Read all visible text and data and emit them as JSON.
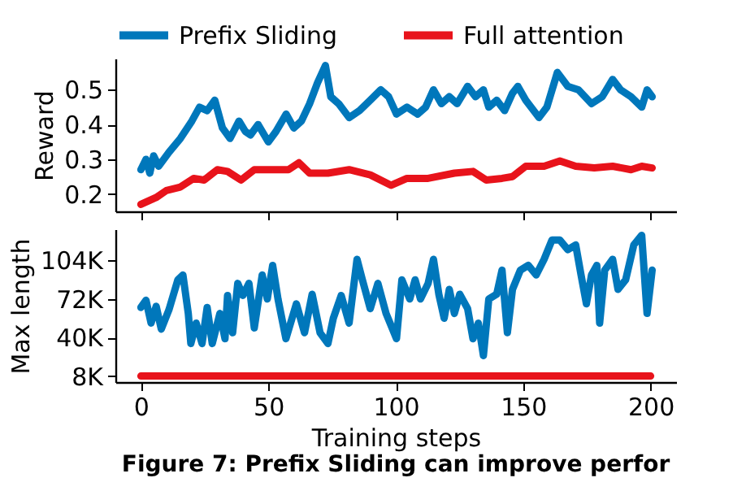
{
  "chart_data": [
    {
      "type": "line",
      "ylabel": "Reward",
      "xlim": [
        -10,
        210
      ],
      "ylim": [
        0.15,
        0.59
      ],
      "xticks": [
        0,
        50,
        100,
        150,
        200
      ],
      "yticks": [
        0.2,
        0.3,
        0.4,
        0.5
      ],
      "tick_labels": "y",
      "grid": false,
      "legend": "top",
      "line_style": "solid",
      "marker": "none",
      "series": [
        {
          "name": "Prefix Sliding",
          "color": "#0077bb",
          "x": [
            0,
            2,
            3.5,
            5,
            7,
            11,
            15.5,
            20,
            23,
            26,
            29,
            32,
            35,
            38.5,
            41,
            43,
            46,
            50,
            53,
            57,
            60,
            63,
            66.2,
            69.3,
            72.4,
            74.5,
            77.6,
            81.7,
            85.8,
            90,
            94.1,
            97.2,
            100.3,
            104.4,
            108.6,
            111.7,
            114.8,
            117.9,
            121,
            124.1,
            128.2,
            131.3,
            134.4,
            136.5,
            139.6,
            142.7,
            145.8,
            147.9,
            151,
            156.2,
            159.3,
            163.4,
            167.5,
            171.7,
            176.8,
            181,
            185.1,
            188.2,
            192.3,
            196.5,
            198.6,
            200.6
          ],
          "values": [
            0.27,
            0.3,
            0.26,
            0.31,
            0.28,
            0.32,
            0.36,
            0.41,
            0.45,
            0.44,
            0.47,
            0.39,
            0.36,
            0.41,
            0.38,
            0.37,
            0.4,
            0.35,
            0.38,
            0.43,
            0.39,
            0.41,
            0.46,
            0.52,
            0.57,
            0.48,
            0.46,
            0.42,
            0.44,
            0.47,
            0.5,
            0.48,
            0.43,
            0.45,
            0.43,
            0.45,
            0.5,
            0.46,
            0.48,
            0.46,
            0.51,
            0.48,
            0.5,
            0.45,
            0.47,
            0.44,
            0.49,
            0.51,
            0.47,
            0.42,
            0.45,
            0.55,
            0.51,
            0.5,
            0.46,
            0.48,
            0.53,
            0.5,
            0.48,
            0.45,
            0.5,
            0.48
          ]
        },
        {
          "name": "Full attention",
          "color": "#e8131b",
          "x": [
            0,
            3,
            6,
            10,
            15.5,
            20.7,
            24.8,
            30,
            34,
            39.3,
            44.5,
            51.7,
            57.9,
            62,
            66.2,
            73.4,
            81.7,
            90,
            98.2,
            104.4,
            112.7,
            123,
            130.3,
            135.5,
            141.7,
            145.8,
            151,
            158.2,
            164.4,
            170.6,
            177.9,
            185.1,
            192.3,
            196.5,
            200.6
          ],
          "values": [
            0.17,
            0.18,
            0.19,
            0.21,
            0.22,
            0.245,
            0.24,
            0.27,
            0.265,
            0.24,
            0.27,
            0.27,
            0.27,
            0.29,
            0.26,
            0.26,
            0.27,
            0.255,
            0.225,
            0.245,
            0.245,
            0.26,
            0.265,
            0.24,
            0.245,
            0.25,
            0.28,
            0.28,
            0.295,
            0.28,
            0.275,
            0.28,
            0.27,
            0.28,
            0.275
          ]
        }
      ]
    },
    {
      "type": "line",
      "xlabel": "Training steps",
      "ylabel": "Max length",
      "xlim": [
        -10,
        210
      ],
      "ylim": [
        3000,
        130000
      ],
      "xticks": [
        0,
        50,
        100,
        150,
        200
      ],
      "yticks": [
        {
          "value": 8000,
          "label": "8K"
        },
        {
          "value": 40000,
          "label": "40K"
        },
        {
          "value": 72000,
          "label": "72K"
        },
        {
          "value": 104000,
          "label": "104K"
        }
      ],
      "grid": false,
      "legend": false,
      "line_style": "solid",
      "marker": "none",
      "annotations": [
        "Figure 7: Prefix Sliding can improve perfor"
      ],
      "series": [
        {
          "color": "#0077bb",
          "x": [
            0,
            2,
            4,
            6,
            8,
            11,
            14.5,
            16.5,
            18.6,
            19.6,
            21.7,
            24,
            26,
            28,
            31,
            33,
            34,
            36,
            38,
            40,
            42.4,
            44.5,
            47.6,
            49.6,
            51.7,
            53.8,
            56.9,
            61,
            64.2,
            67.2,
            70.3,
            73.4,
            75.5,
            78.6,
            81.7,
            84.8,
            86.9,
            90,
            93,
            96.2,
            100.3,
            102.4,
            105.5,
            107.6,
            109.7,
            112.7,
            114.8,
            116.9,
            119,
            121,
            123,
            125.1,
            128.2,
            130.3,
            132.4,
            134.4,
            136.5,
            139.6,
            141.7,
            143.8,
            145.8,
            148.9,
            152,
            155.1,
            158.2,
            161.3,
            164.4,
            167.5,
            170.6,
            172.7,
            174.8,
            176.8,
            178.9,
            180,
            182,
            185.1,
            187.2,
            190.2,
            193.4,
            196.5,
            198.6,
            200.6
          ],
          "values": [
            65000,
            71000,
            52000,
            66000,
            47000,
            63000,
            88000,
            92000,
            60000,
            35000,
            52000,
            35000,
            65000,
            35000,
            60000,
            39000,
            75000,
            44000,
            85000,
            75000,
            85000,
            48000,
            92000,
            72000,
            100000,
            72000,
            39000,
            68000,
            44000,
            76000,
            44000,
            35000,
            56000,
            75000,
            52000,
            105000,
            88000,
            64000,
            85000,
            60000,
            39000,
            88000,
            72000,
            88000,
            72000,
            85000,
            105000,
            76000,
            56000,
            80000,
            60000,
            76000,
            64000,
            39000,
            52000,
            25000,
            72000,
            76000,
            96000,
            44000,
            80000,
            96000,
            100000,
            92000,
            105000,
            121000,
            121000,
            113000,
            117000,
            92000,
            68000,
            92000,
            100000,
            52000,
            96000,
            105000,
            80000,
            88000,
            117000,
            125000,
            60000,
            96000
          ]
        },
        {
          "color": "#e8131b",
          "x": [
            0,
            200
          ],
          "values": [
            8000,
            8000
          ]
        }
      ]
    }
  ]
}
